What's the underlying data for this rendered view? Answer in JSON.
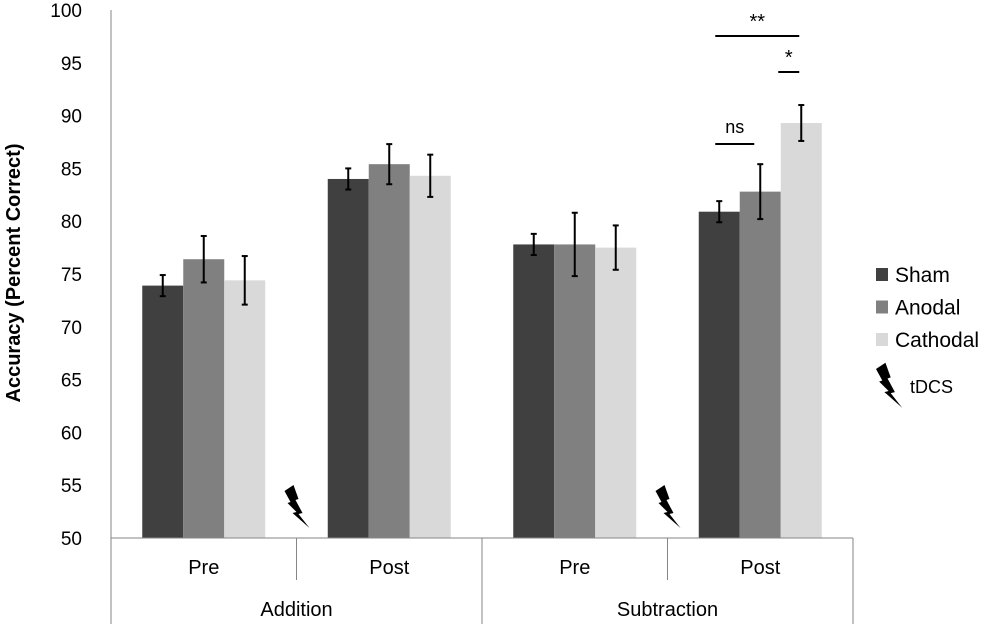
{
  "chart_data": {
    "type": "bar",
    "ylabel": "Accuracy (Percent Correct)",
    "ylim": [
      50,
      100
    ],
    "yticks": [
      50,
      55,
      60,
      65,
      70,
      75,
      80,
      85,
      90,
      95,
      100
    ],
    "grid": false,
    "legend_position": "right",
    "categories": [
      {
        "group": "Addition",
        "label": "Pre"
      },
      {
        "group": "Addition",
        "label": "Post"
      },
      {
        "group": "Subtraction",
        "label": "Pre"
      },
      {
        "group": "Subtraction",
        "label": "Post"
      }
    ],
    "groups": [
      "Addition",
      "Subtraction"
    ],
    "series": [
      {
        "name": "Sham",
        "color": "#404040",
        "values": [
          73.9,
          84.0,
          77.8,
          80.9
        ],
        "errors": [
          1.0,
          1.0,
          1.0,
          1.0
        ]
      },
      {
        "name": "Anodal",
        "color": "#808080",
        "values": [
          76.4,
          85.4,
          77.8,
          82.8
        ],
        "errors": [
          2.2,
          1.9,
          3.0,
          2.6
        ]
      },
      {
        "name": "Cathodal",
        "color": "#d9d9d9",
        "values": [
          74.4,
          84.3,
          77.5,
          89.3
        ],
        "errors": [
          2.3,
          2.0,
          2.1,
          1.7
        ]
      }
    ],
    "annotations": [
      {
        "text": "**",
        "category": 3,
        "from_series": "Sham",
        "to_series": "Cathodal"
      },
      {
        "text": "*",
        "category": 3,
        "from_series": "Anodal",
        "to_series": "Cathodal"
      },
      {
        "text": "ns",
        "category": 3,
        "from_series": "Sham",
        "to_series": "Anodal"
      }
    ],
    "markers": [
      {
        "icon": "lightning-bolt-icon",
        "meaning": "tDCS",
        "between_categories": [
          0,
          1
        ]
      },
      {
        "icon": "lightning-bolt-icon",
        "meaning": "tDCS",
        "between_categories": [
          2,
          3
        ]
      }
    ],
    "legend_extra": {
      "icon": "lightning-bolt-icon",
      "label": "tDCS"
    }
  }
}
